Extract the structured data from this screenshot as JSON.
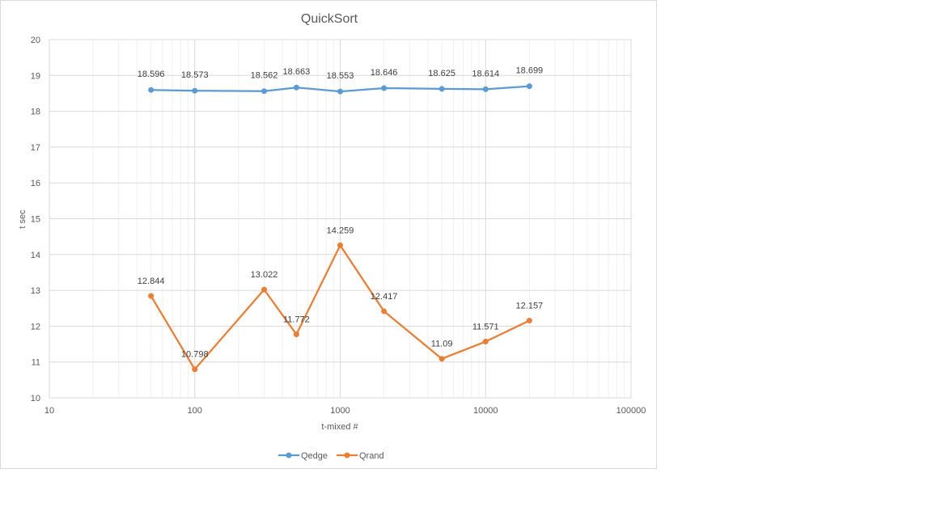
{
  "chart_data": {
    "type": "line",
    "title": "QuickSort",
    "xlabel": "t-mixed #",
    "ylabel": "t sec",
    "xscale": "log",
    "xlim": [
      10,
      100000
    ],
    "ylim": [
      10,
      20
    ],
    "x_ticks": [
      "10",
      "100",
      "1000",
      "10000",
      "100000"
    ],
    "y_ticks": [
      "10",
      "11",
      "12",
      "13",
      "14",
      "15",
      "16",
      "17",
      "18",
      "19",
      "20"
    ],
    "grid": true,
    "legend_position": "bottom",
    "x": [
      50,
      100,
      300,
      500,
      1000,
      2000,
      5000,
      10000,
      20000
    ],
    "series": [
      {
        "name": "Qedge",
        "color": "#5b9bd5",
        "values": [
          18.596,
          18.573,
          18.562,
          18.663,
          18.553,
          18.646,
          18.625,
          18.614,
          18.699
        ],
        "labels": [
          "18.596",
          "18.573",
          "18.562",
          "18.663",
          "18.553",
          "18.646",
          "18.625",
          "18.614",
          "18.699"
        ]
      },
      {
        "name": "Qrand",
        "color": "#ed7d31",
        "values": [
          12.844,
          10.798,
          13.022,
          11.772,
          14.259,
          12.417,
          11.09,
          11.571,
          12.157
        ],
        "labels": [
          "12.844",
          "10.798",
          "13.022",
          "11.772",
          "14.259",
          "12.417",
          "11.09",
          "11.571",
          "12.157"
        ]
      }
    ]
  }
}
